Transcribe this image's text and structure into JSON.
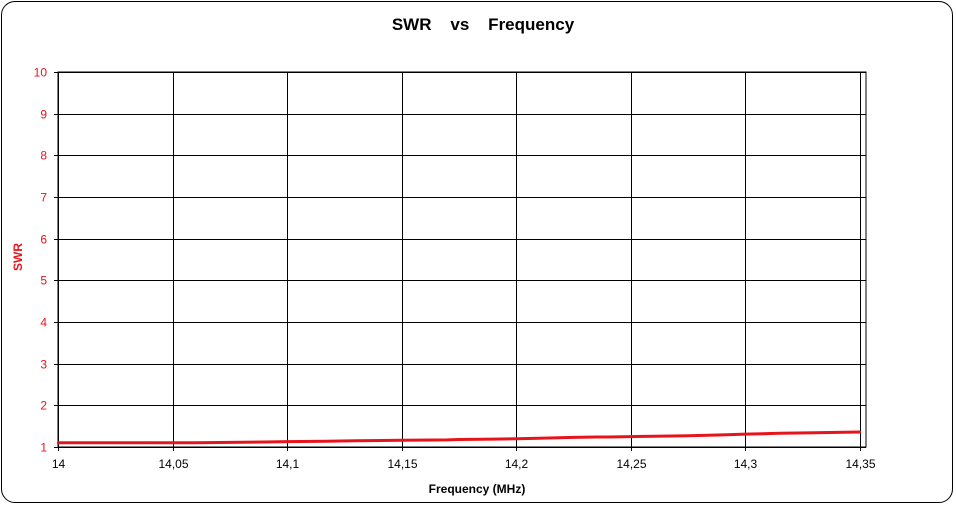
{
  "chart_data": {
    "type": "line",
    "title": "SWR    vs    Frequency",
    "xlabel": "Frequency (MHz)",
    "ylabel": "SWR",
    "xlim": [
      14,
      14.35
    ],
    "ylim": [
      1,
      10
    ],
    "x_ticks": [
      "14",
      "14,05",
      "14,1",
      "14,15",
      "14,2",
      "14,25",
      "14,3",
      "14,35"
    ],
    "y_ticks": [
      "1",
      "2",
      "3",
      "4",
      "5",
      "6",
      "7",
      "8",
      "9",
      "10"
    ],
    "grid": true,
    "legend": "none",
    "series": [
      {
        "color": "#e8141b",
        "x": [
          14.0,
          14.02,
          14.04,
          14.06,
          14.075,
          14.09,
          14.1,
          14.117,
          14.13,
          14.15,
          14.17,
          14.175,
          14.19,
          14.2,
          14.21,
          14.225,
          14.235,
          14.24,
          14.25,
          14.26,
          14.275,
          14.29,
          14.3,
          14.315,
          14.33,
          14.34,
          14.35
        ],
        "y": [
          1.1,
          1.1,
          1.1,
          1.1,
          1.11,
          1.12,
          1.13,
          1.14,
          1.15,
          1.16,
          1.17,
          1.18,
          1.19,
          1.2,
          1.21,
          1.23,
          1.24,
          1.24,
          1.25,
          1.26,
          1.27,
          1.29,
          1.31,
          1.33,
          1.34,
          1.35,
          1.36
        ]
      }
    ]
  },
  "colors": {
    "axis_text": "#e8141b",
    "grid": "#000000"
  }
}
